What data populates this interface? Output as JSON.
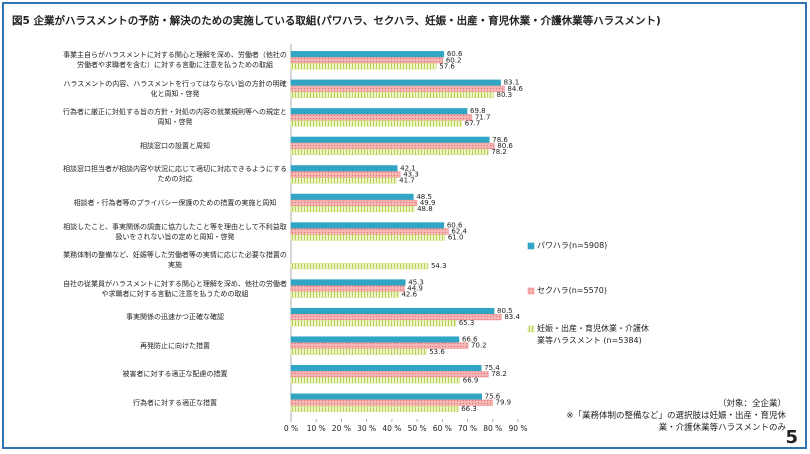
{
  "chart_data": {
    "type": "hbar",
    "title": "図5 企業がハラスメントの予防・解決のための実施している取組(パワハラ、セクハラ、妊娠・出産・育児休業・介護休業等ハラスメント)",
    "categories": [
      "事業主自らがハラスメントに対する関心と理解を深め、労働者（他社の労働者や求職者を含む）に対する言動に注意を払うための取組",
      "ハラスメントの内容、ハラスメントを行ってはならない旨の方針の明確化と周知・啓発",
      "行為者に厳正に対処する旨の方針・対処の内容の就業規則等への規定と周知・啓発",
      "相談窓口の設置と周知",
      "相談窓口担当者が相談内容や状況に応じて適切に対応できるようにするための対応",
      "相談者・行為者等のプライバシー保護のための措置の実施と周知",
      "相談したこと、事実関係の調査に協力したこと等を理由として不利益取扱いをされない旨の定めと周知・啓発",
      "業務体制の整備など、妊娠等した労働者等の実情に応じた必要な措置の実施",
      "自社の従業員がハラスメントに対する関心と理解を深め、他社の労働者や求職者に対する言動に注意を払うための取組",
      "事実関係の迅速かつ正確な確認",
      "再発防止に向けた措置",
      "被害者に対する適正な配慮の措置",
      "行為者に対する適正な措置"
    ],
    "series": [
      {
        "name": "パワハラ(n=5908)",
        "color": "#31a5c4",
        "values": [
          60.6,
          83.1,
          69.8,
          78.6,
          42.1,
          48.5,
          60.6,
          null,
          45.3,
          80.5,
          66.6,
          75.4,
          75.6
        ],
        "value_labels": [
          "60.6",
          "83.1",
          "69.8",
          "78.6",
          "42.1",
          "48.5",
          "60.6",
          null,
          "45.3",
          "80.5",
          "66.6",
          "75.4",
          "75.6"
        ]
      },
      {
        "name": "セクハラ(n=5570)",
        "color": "#ef8f8f",
        "values": [
          60.2,
          84.6,
          71.7,
          80.6,
          43.3,
          49.9,
          62.4,
          null,
          44.9,
          83.4,
          70.2,
          78.2,
          79.9
        ],
        "value_labels": [
          "60.2",
          "84.6",
          "71.7",
          "80.6",
          "43.3",
          "49.9",
          "62.4",
          null,
          "44.9",
          "83.4",
          "70.2",
          "78.2",
          "79.9"
        ]
      },
      {
        "name": "妊娠・出産・育児休業・介護休業等ハラスメント (n=5384)",
        "color": "#d4e58c",
        "values": [
          57.6,
          80.3,
          67.7,
          78.2,
          41.7,
          48.8,
          61.0,
          54.3,
          42.6,
          65.3,
          53.6,
          66.9,
          66.3
        ],
        "value_labels": [
          "57.6",
          "80.3",
          "67.7",
          "78.2",
          "41.7",
          "48.8",
          "61.0",
          "54.3",
          "42.6",
          "65.3",
          "53.6",
          "66.9",
          "66.3"
        ]
      }
    ],
    "xlim": [
      0,
      90
    ],
    "xticks": [
      {
        "value": 0,
        "label": "0 %"
      },
      {
        "value": 10,
        "label": "10 %"
      },
      {
        "value": 20,
        "label": "20 %"
      },
      {
        "value": 30,
        "label": "30 %"
      },
      {
        "value": 40,
        "label": "40 %"
      },
      {
        "value": 50,
        "label": "50 %"
      },
      {
        "value": 60,
        "label": "60 %"
      },
      {
        "value": 70,
        "label": "70 %"
      },
      {
        "value": 80,
        "label": "80 %"
      },
      {
        "value": 90,
        "label": "90 %"
      }
    ],
    "legend": "right",
    "notes": [
      "（対象：全企業）",
      "※「業務体制の整備など」の選択肢は妊娠・出産・育児休業・介護休業等ハラスメントのみ"
    ],
    "page_number": "5"
  }
}
